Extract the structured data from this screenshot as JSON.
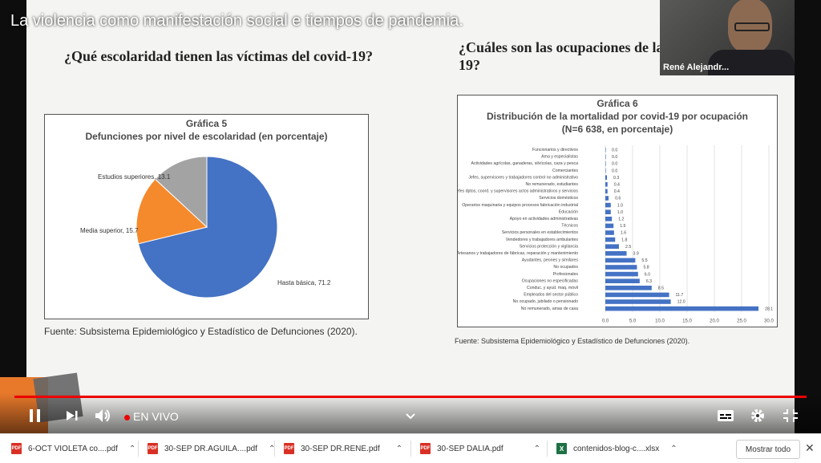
{
  "video_title": "La violencia como manifestación social e tiempos de pandemia.",
  "slide": {
    "left_question": "¿Qué escolaridad tienen las víctimas del covid-19?",
    "right_question_line1": "¿Cuáles son las ocupaciones de las v",
    "right_question_line2": "19?",
    "left_source": "Fuente: Subsistema Epidemiológico y Estadístico de Defunciones (2020).",
    "right_source": "Fuente: Subsistema Epidemiológico y Estadístico de Defunciones (2020)."
  },
  "chart_data": [
    {
      "type": "pie",
      "caption": "Gráfica 5",
      "title": "Defunciones por nivel de escolaridad (en porcentaje)",
      "categories": [
        "Hasta básica",
        "Media superior",
        "Estudios superiores"
      ],
      "values": [
        71.2,
        15.7,
        13.1
      ],
      "labels": [
        "Hasta básica, 71.2",
        "Media superior, 15.7",
        "Estudios superiores, 13.1"
      ],
      "colors": [
        "#4472c4",
        "#f58a2c",
        "#a3a3a3"
      ]
    },
    {
      "type": "bar",
      "orientation": "horizontal",
      "caption": "Gráfica 6",
      "title": "Distribución de la mortalidad por covid-19 por ocupación",
      "subtitle": "(N=6 638, en porcentaje)",
      "categories": [
        "Funcionarios y directivos",
        "Ama y especialistas",
        "Actividades agrícolas, ganaderas, silvícolas, caza y pesca",
        "Comerciantes",
        "Jefes, supervisores y trabajadores control no administrativo",
        "No remunerado, estudiantes",
        "Jefes dptos, coord. y supervisores actos administrativos y servicios",
        "Servicios domésticos",
        "Operarios maquinaria y equipos procesos fabricación industrial",
        "Educación",
        "Apoyo en actividades administrativas",
        "Técnicos",
        "Servicios personales en establecimientos",
        "Vendedores y trabajadores ambulantes",
        "Servicios protección y vigilancia",
        "Artesanos y trabajadores de fábricas, reparación y mantenimiento",
        "Ayudantes, peones y similares",
        "No ocupados",
        "Profesionales",
        "Ocupaciones no especificadas",
        "Conduc. y ayud. maq. móvil",
        "Empleados del sector público",
        "No ocupado, jubilado o pensionado",
        "No remunerado, amas de casa"
      ],
      "values": [
        0.0,
        0.0,
        0.0,
        0.0,
        0.3,
        0.4,
        0.4,
        0.6,
        1.0,
        1.0,
        1.2,
        1.5,
        1.6,
        1.8,
        2.5,
        3.9,
        5.5,
        5.8,
        6.0,
        6.3,
        8.5,
        11.7,
        12.0,
        28.1
      ],
      "value_labels": [
        "0.0",
        "0.0",
        "0.0",
        "0.0",
        "0.3",
        "0.4",
        "0.4",
        "0.6",
        "1.0",
        "1.0",
        "1.2",
        "1.5",
        "1.6",
        "1.8",
        "2.5",
        "3.9",
        "5.5",
        "5.8",
        "6.0",
        "6.3",
        "8.5",
        "11.7",
        "12.0",
        "28.1"
      ],
      "xlim": [
        0,
        30
      ],
      "xticks": [
        "0.0",
        "5.0",
        "10.0",
        "15.0",
        "20.0",
        "25.0",
        "30.0"
      ],
      "grid": true,
      "color": "#4472c4"
    }
  ],
  "webcam": {
    "name": "René Alejandr..."
  },
  "controls": {
    "live_label": "EN VIVO",
    "pause_icon": "pause-icon",
    "next_icon": "skip-next-icon",
    "volume_icon": "volume-icon",
    "chevron_icon": "chevron-down-icon",
    "subtitles_icon": "subtitles-icon",
    "settings_icon": "gear-icon",
    "exit_fullscreen_icon": "exit-fullscreen-icon",
    "progress_color": "#ee0000"
  },
  "downloads": {
    "items": [
      {
        "name": "6-OCT VIOLETA co....pdf",
        "type": "PDF"
      },
      {
        "name": "30-SEP DR.AGUILA....pdf",
        "type": "PDF"
      },
      {
        "name": "30-SEP DR.RENE.pdf",
        "type": "PDF"
      },
      {
        "name": "30-SEP DALIA.pdf",
        "type": "PDF"
      },
      {
        "name": "contenidos-blog-c....xlsx",
        "type": "X"
      }
    ],
    "show_all_label": "Mostrar todo"
  }
}
